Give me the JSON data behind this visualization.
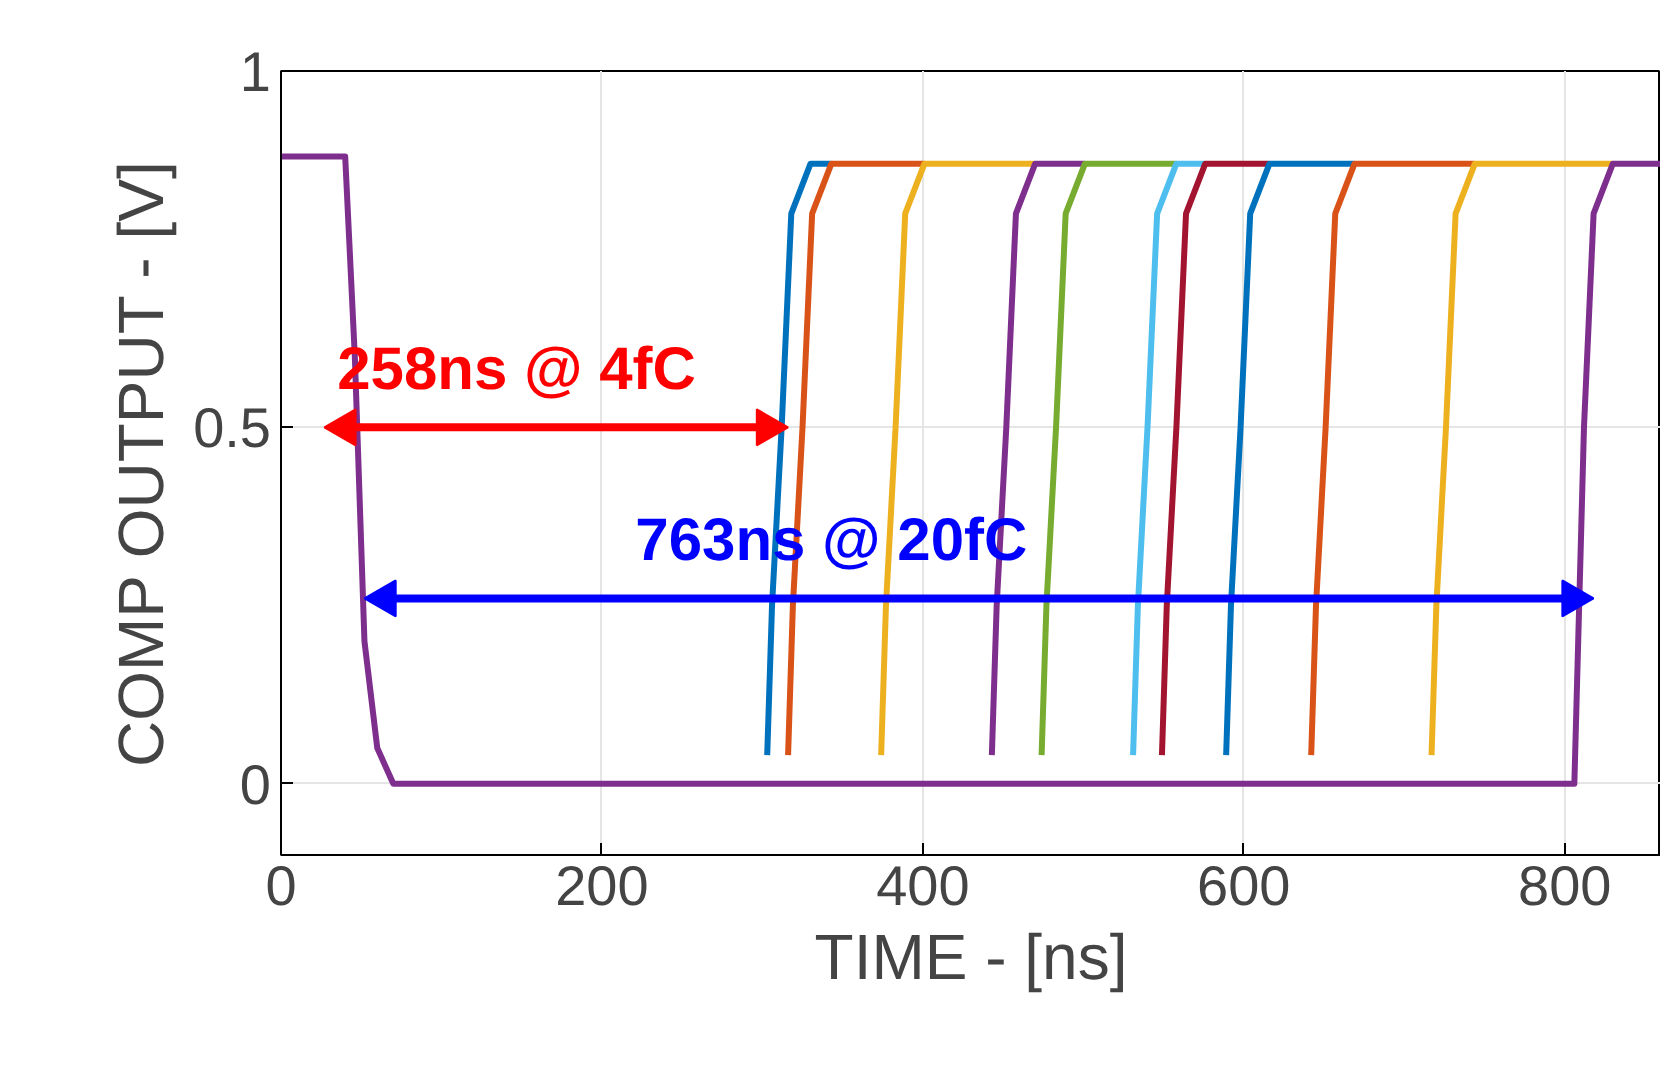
{
  "chart_data": {
    "type": "line",
    "xlabel": "TIME - [ns]",
    "ylabel": "COMP OUTPUT - [V]",
    "xlim": [
      0,
      860
    ],
    "ylim": [
      -0.1,
      1
    ],
    "xticks": [
      0,
      200,
      400,
      600,
      800
    ],
    "yticks": [
      0,
      0.5,
      1
    ],
    "grid": true,
    "series": [
      {
        "color": "#0072bd",
        "x": [
          303,
          306,
          312,
          318,
          330,
          343
        ],
        "values": [
          0.04,
          0.25,
          0.5,
          0.8,
          0.87,
          0.87
        ]
      },
      {
        "color": "#d95319",
        "x": [
          316,
          319,
          325,
          331,
          343,
          401
        ],
        "values": [
          0.04,
          0.25,
          0.5,
          0.8,
          0.87,
          0.87
        ]
      },
      {
        "color": "#edb120",
        "x": [
          374,
          377,
          383,
          389,
          401,
          470
        ],
        "values": [
          0.04,
          0.25,
          0.5,
          0.8,
          0.87,
          0.87
        ]
      },
      {
        "color": "#7e2f8e",
        "x": [
          443,
          446,
          452,
          458,
          470,
          501
        ],
        "values": [
          0.04,
          0.25,
          0.5,
          0.8,
          0.87,
          0.87
        ]
      },
      {
        "color": "#77ac30",
        "x": [
          474,
          477,
          483,
          489,
          501,
          558
        ],
        "values": [
          0.04,
          0.25,
          0.5,
          0.8,
          0.87,
          0.87
        ]
      },
      {
        "color": "#4dbeee",
        "x": [
          531,
          534,
          540,
          546,
          558,
          576
        ],
        "values": [
          0.04,
          0.25,
          0.5,
          0.8,
          0.87,
          0.87
        ]
      },
      {
        "color": "#a2142f",
        "x": [
          549,
          552,
          558,
          564,
          576,
          616
        ],
        "values": [
          0.04,
          0.25,
          0.5,
          0.8,
          0.87,
          0.87
        ]
      },
      {
        "color": "#0072bd",
        "x": [
          589,
          592,
          598,
          604,
          616,
          669
        ],
        "values": [
          0.04,
          0.25,
          0.5,
          0.8,
          0.87,
          0.87
        ]
      },
      {
        "color": "#d95319",
        "x": [
          642,
          645,
          651,
          657,
          669,
          744
        ],
        "values": [
          0.04,
          0.25,
          0.5,
          0.8,
          0.87,
          0.87
        ]
      },
      {
        "color": "#edb120",
        "x": [
          717,
          720,
          726,
          732,
          744,
          830
        ],
        "values": [
          0.04,
          0.25,
          0.5,
          0.8,
          0.87,
          0.87
        ]
      },
      {
        "color": "#7e2f8e",
        "x": [
          0,
          40,
          46,
          52,
          60,
          70,
          800,
          806,
          812,
          818,
          830,
          860
        ],
        "values": [
          0.88,
          0.88,
          0.6,
          0.2,
          0.05,
          0,
          0,
          0,
          0.5,
          0.8,
          0.87,
          0.87
        ]
      },
      {
        "color": "#ff0000",
        "x": [
          40,
          303
        ],
        "values": [
          0.5,
          0.5
        ],
        "marker": "triangle"
      },
      {
        "color": "#0000ff",
        "x": [
          65,
          805
        ],
        "values": [
          0.26,
          0.26
        ],
        "marker": "triangle"
      }
    ],
    "annotations": [
      "258ns @ 4fC",
      "763ns @ 20fC"
    ]
  }
}
